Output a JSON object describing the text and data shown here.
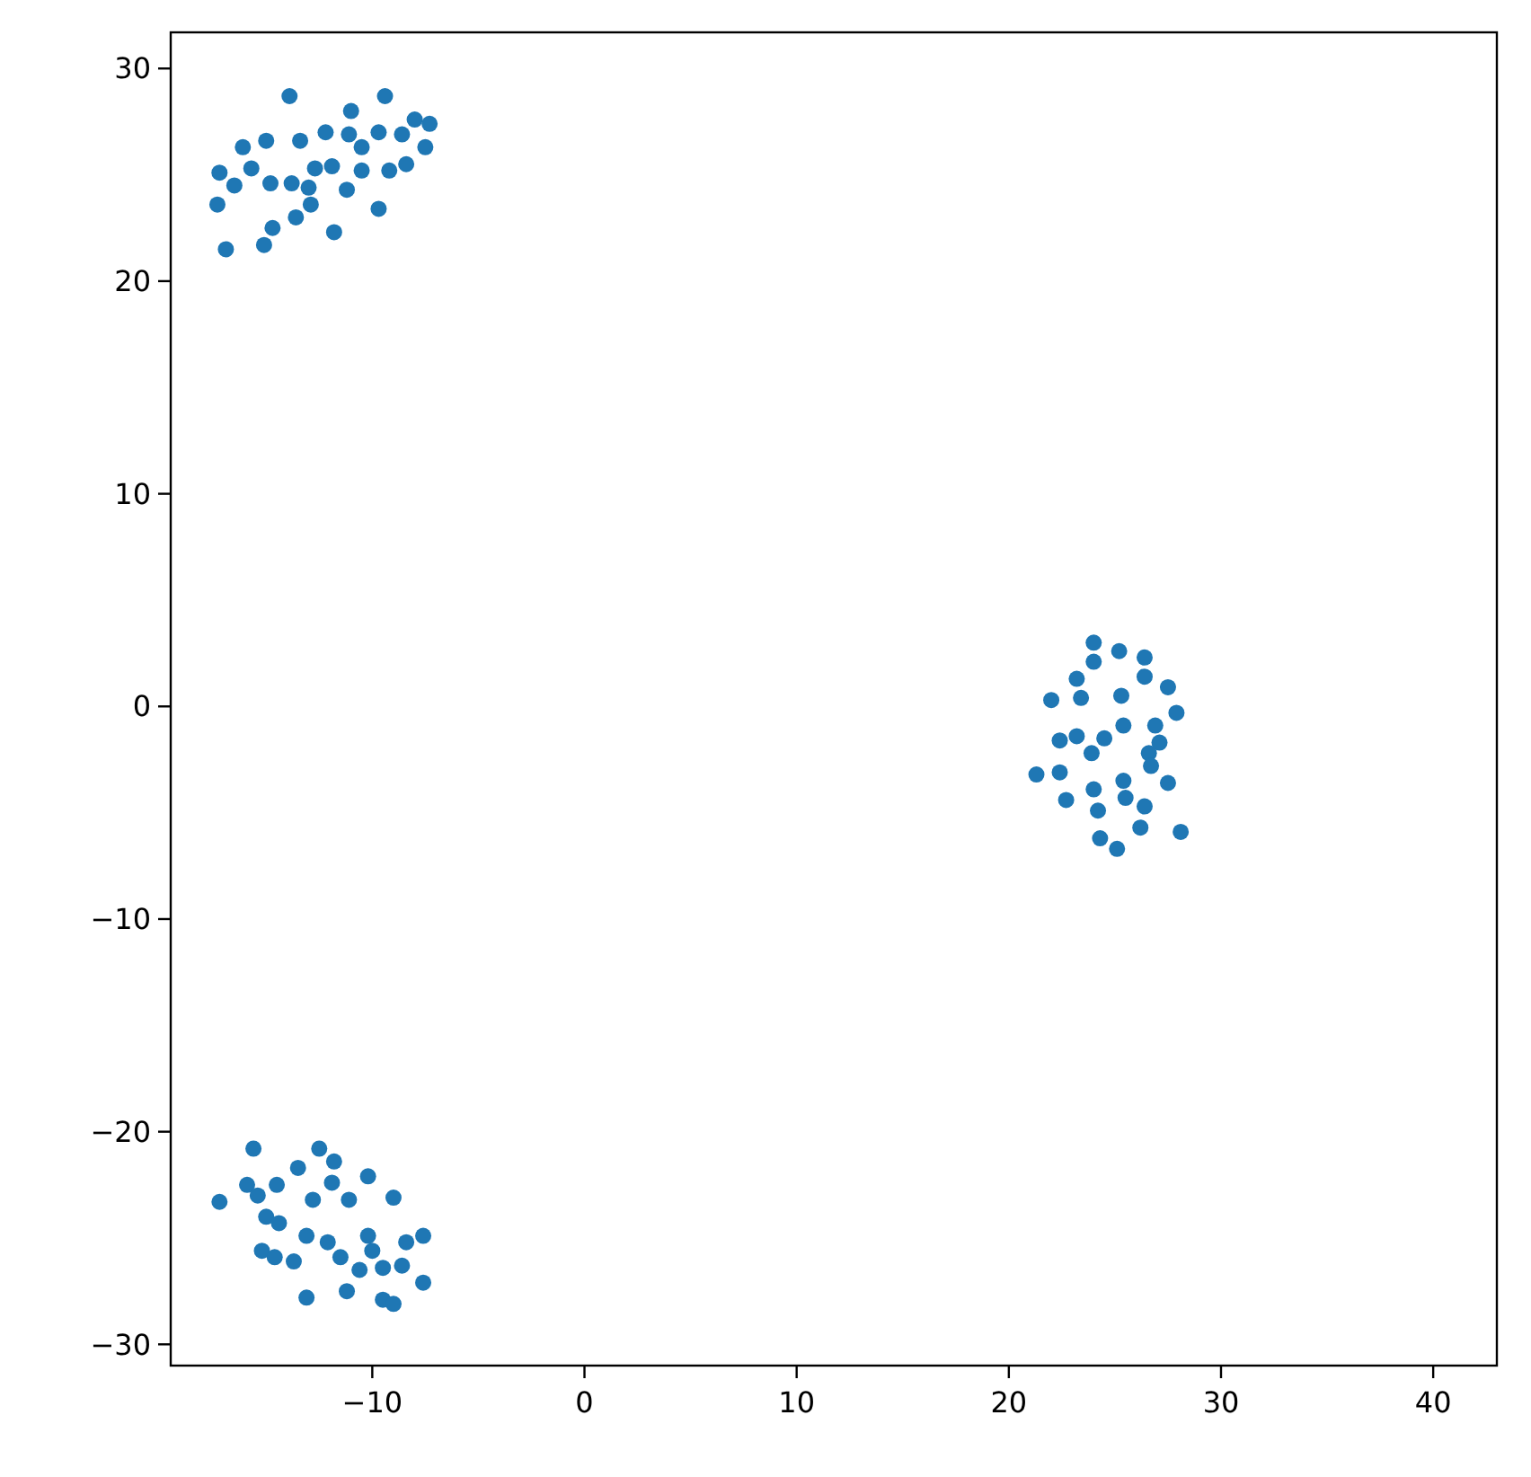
{
  "chart_data": {
    "type": "scatter",
    "marker": "circle",
    "grid": false,
    "xlim": [
      -19.5,
      43
    ],
    "ylim": [
      -31,
      31.7
    ],
    "xticks": [
      {
        "value": -10,
        "label": "−10"
      },
      0,
      10,
      20,
      30,
      40
    ],
    "yticks": [
      {
        "value": -30,
        "label": "−30"
      },
      {
        "value": -20,
        "label": "−20"
      },
      {
        "value": -10,
        "label": "−10"
      },
      0,
      10,
      20,
      30
    ],
    "series": [
      {
        "color": "#1f77b4",
        "x": [
          -13.9,
          -9.4,
          -11.0,
          -8.0,
          -7.3,
          -16.1,
          -15.0,
          -13.4,
          -12.2,
          -11.1,
          -9.7,
          -8.6,
          -7.5,
          -10.5,
          -17.2,
          -15.7,
          -12.7,
          -11.9,
          -10.5,
          -9.2,
          -8.4,
          -16.5,
          -14.8,
          -13.8,
          -13.0,
          -11.2,
          -17.3,
          -12.9,
          -13.6,
          -9.7,
          -14.7,
          -11.8,
          -15.1,
          -16.9,
          -15.6,
          -12.5,
          -11.8,
          -13.5,
          -10.2,
          -15.9,
          -14.5,
          -11.9,
          -15.4,
          -17.2,
          -12.8,
          -11.1,
          -9.0,
          -15.0,
          -14.4,
          -13.1,
          -12.1,
          -10.2,
          -10.0,
          -8.4,
          -7.6,
          -15.2,
          -14.6,
          -13.7,
          -11.5,
          -10.6,
          -9.5,
          -8.6,
          -7.6,
          -13.1,
          -11.2,
          -9.5,
          -9.0,
          24.0,
          25.2,
          26.4,
          24.0,
          23.2,
          26.4,
          27.5,
          22.0,
          23.4,
          25.3,
          27.9,
          25.4,
          26.9,
          22.4,
          23.2,
          24.5,
          27.1,
          23.9,
          26.6,
          26.7,
          21.3,
          22.4,
          25.4,
          27.5,
          22.7,
          24.0,
          25.5,
          24.2,
          26.4,
          26.2,
          28.1,
          24.3,
          25.1
        ],
        "values": [
          28.7,
          28.7,
          28.0,
          27.6,
          27.4,
          26.3,
          26.6,
          26.6,
          27.0,
          26.9,
          27.0,
          26.9,
          26.3,
          26.3,
          25.1,
          25.3,
          25.3,
          25.4,
          25.2,
          25.2,
          25.5,
          24.5,
          24.6,
          24.6,
          24.4,
          24.3,
          23.6,
          23.6,
          23.0,
          23.4,
          22.5,
          22.3,
          21.7,
          21.5,
          -20.8,
          -20.8,
          -21.4,
          -21.7,
          -22.1,
          -22.5,
          -22.5,
          -22.4,
          -23.0,
          -23.3,
          -23.2,
          -23.2,
          -23.1,
          -24.0,
          -24.3,
          -24.9,
          -25.2,
          -24.9,
          -25.6,
          -25.2,
          -24.9,
          -25.6,
          -25.9,
          -26.1,
          -25.9,
          -26.5,
          -26.4,
          -26.3,
          -27.1,
          -27.8,
          -27.5,
          -27.9,
          -28.1,
          3.0,
          2.6,
          2.3,
          2.1,
          1.3,
          1.4,
          0.9,
          0.3,
          0.4,
          0.5,
          -0.3,
          -0.9,
          -0.9,
          -1.6,
          -1.4,
          -1.5,
          -1.7,
          -2.2,
          -2.2,
          -2.8,
          -3.2,
          -3.1,
          -3.5,
          -3.6,
          -4.4,
          -3.9,
          -4.3,
          -4.9,
          -4.7,
          -5.7,
          -5.9,
          -6.2,
          -6.7
        ]
      }
    ]
  }
}
